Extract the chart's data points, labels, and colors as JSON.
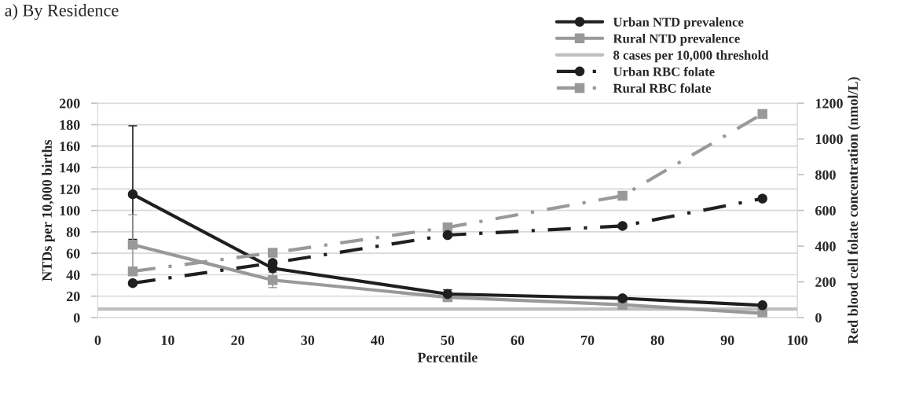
{
  "chart_data": {
    "type": "line",
    "title": "a) By Residence",
    "xlabel": "Percentile",
    "ylabel": "NTDs per 10,000 births",
    "y2label": "Red blood cell folate concentration (nmol/L)",
    "x": [
      5,
      25,
      50,
      75,
      95
    ],
    "series": [
      {
        "name": "Urban NTD prevalence",
        "color": "#1f1f1f",
        "values": [
          115,
          46,
          22,
          18,
          11.5
        ],
        "errors": [
          [
            73,
            179
          ],
          null,
          [
            22,
            26
          ],
          [
            17,
            20
          ],
          null
        ],
        "marker": "circle",
        "line_style": "solid"
      },
      {
        "name": "Rural NTD prevalence",
        "color": "#999999",
        "values": [
          68,
          35,
          19,
          12,
          4
        ],
        "errors": [
          [
            47,
            96
          ],
          [
            28,
            42
          ],
          null,
          null,
          null
        ],
        "marker": "square",
        "line_style": "solid"
      },
      {
        "name": "8 cases per 10,000 threshold",
        "color": "#bfbfbf",
        "x": [
          0,
          100
        ],
        "values": [
          8,
          8
        ],
        "marker": "none",
        "line_style": "solid"
      },
      {
        "name": "Urban RBC folate",
        "color": "#1f1f1f",
        "values": [
          193,
          306,
          462,
          513,
          666
        ],
        "axis": "y2",
        "marker": "circle",
        "line_style": "dashdot"
      },
      {
        "name": "Rural RBC folate",
        "color": "#999999",
        "values": [
          259,
          363,
          505,
          682,
          1140
        ],
        "axis": "y2",
        "marker": "square",
        "line_style": "dashdot"
      }
    ],
    "xlim": [
      0,
      100
    ],
    "xticks": [
      0,
      10,
      20,
      30,
      40,
      50,
      60,
      70,
      80,
      90,
      100
    ],
    "ylim": [
      0,
      200
    ],
    "yticks": [
      0,
      20,
      40,
      60,
      80,
      100,
      120,
      140,
      160,
      180,
      200
    ],
    "y2lim": [
      0,
      1200
    ],
    "y2ticks": [
      0,
      200,
      400,
      600,
      800,
      1000,
      1200
    ],
    "grid": "y",
    "legend": "top right"
  }
}
